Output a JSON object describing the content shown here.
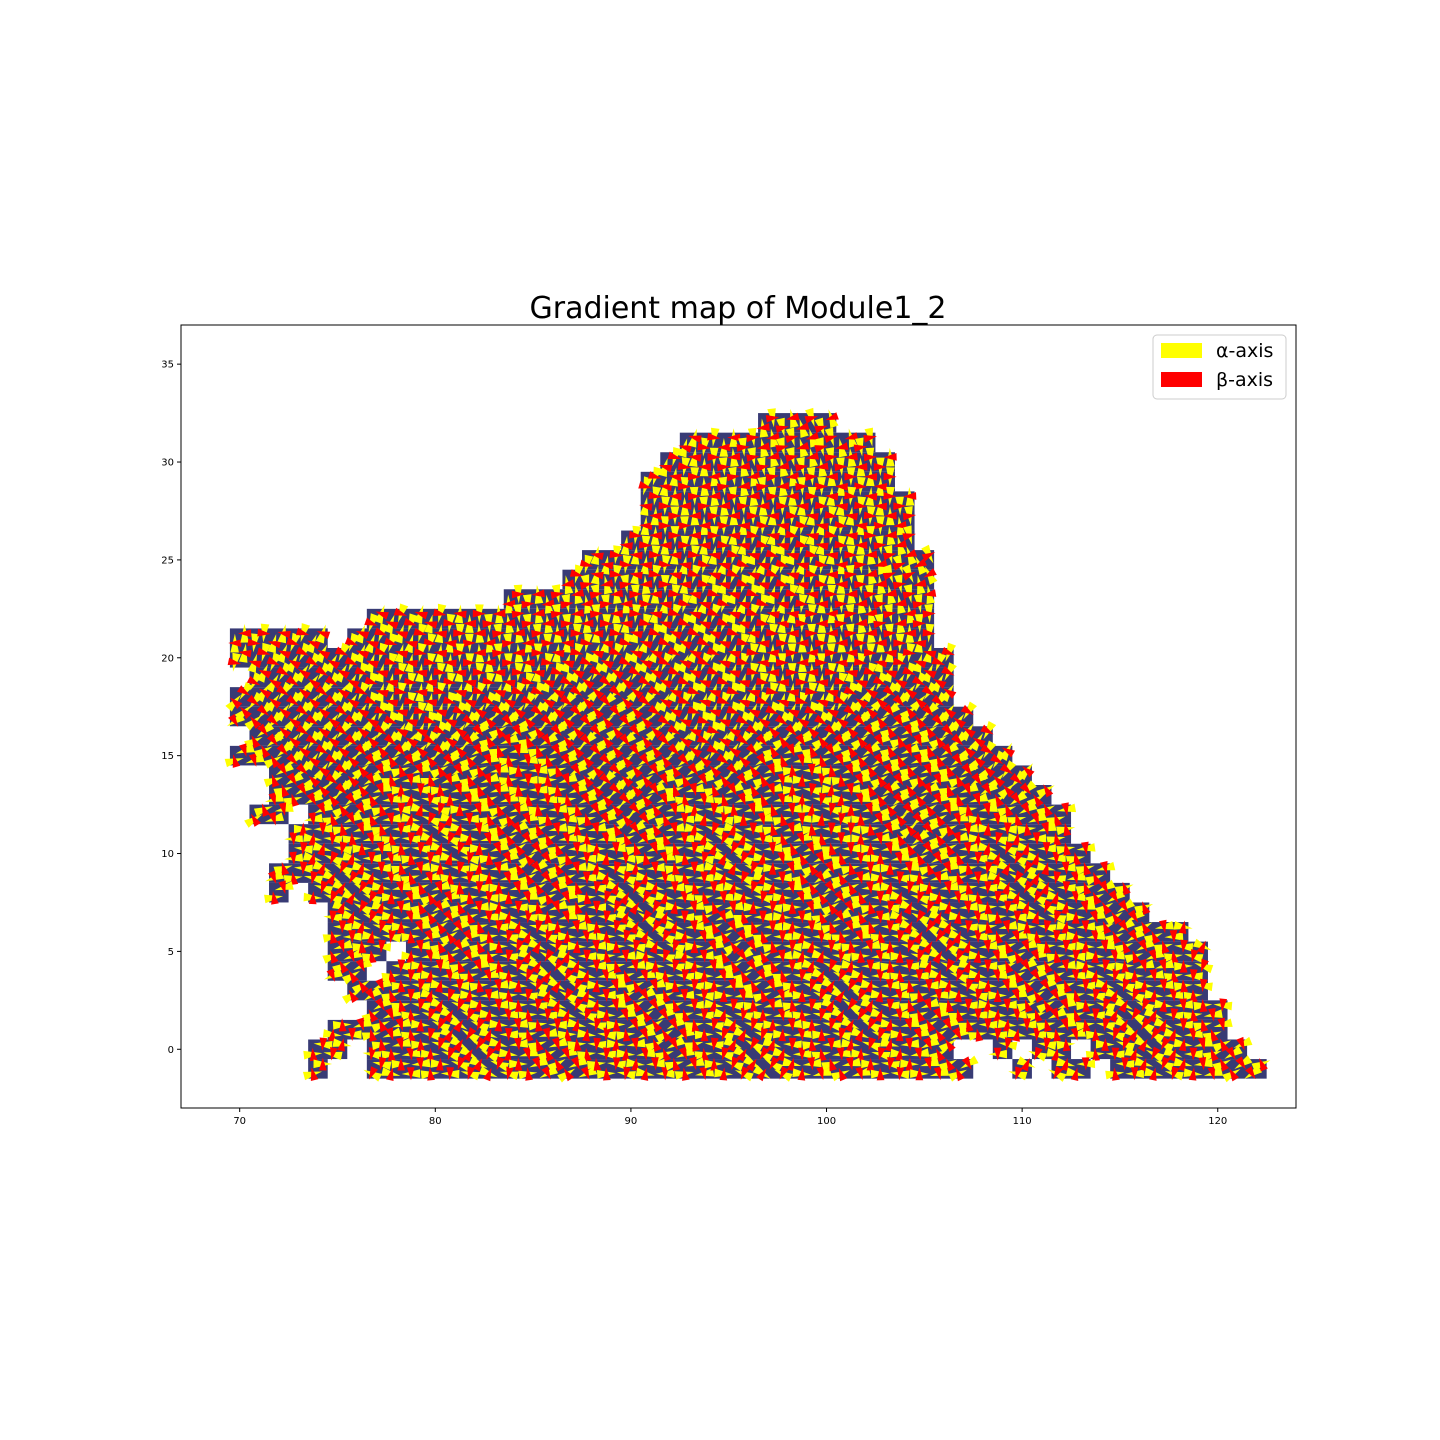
{
  "chart_data": {
    "type": "quiver",
    "title": "Gradient map of Module1_2",
    "xlabel": "",
    "ylabel": "",
    "xlim": [
      67,
      124
    ],
    "ylim": [
      -3,
      37
    ],
    "x_ticks": [
      70,
      80,
      90,
      100,
      110,
      120
    ],
    "y_ticks": [
      0,
      5,
      10,
      15,
      20,
      25,
      30,
      35
    ],
    "grid": false,
    "legend_position": "top-right",
    "cell_color": "#383b75",
    "series": [
      {
        "name": "α-axis",
        "color": "#ffff00"
      },
      {
        "name": "β-axis",
        "color": "#ff0000"
      }
    ],
    "region_rows": [
      {
        "y": 32,
        "x_ranges": [
          [
            97,
            100
          ]
        ]
      },
      {
        "y": 31,
        "x_ranges": [
          [
            93,
            102
          ]
        ]
      },
      {
        "y": 30,
        "x_ranges": [
          [
            92,
            103
          ]
        ]
      },
      {
        "y": 29,
        "x_ranges": [
          [
            91,
            103
          ]
        ]
      },
      {
        "y": 28,
        "x_ranges": [
          [
            91,
            104
          ]
        ]
      },
      {
        "y": 27,
        "x_ranges": [
          [
            91,
            104
          ]
        ]
      },
      {
        "y": 26,
        "x_ranges": [
          [
            90,
            104
          ]
        ]
      },
      {
        "y": 25,
        "x_ranges": [
          [
            88,
            105
          ]
        ]
      },
      {
        "y": 24,
        "x_ranges": [
          [
            87,
            105
          ]
        ]
      },
      {
        "y": 23,
        "x_ranges": [
          [
            84,
            105
          ]
        ]
      },
      {
        "y": 22,
        "x_ranges": [
          [
            77,
            105
          ]
        ]
      },
      {
        "y": 21,
        "x_ranges": [
          [
            70,
            74
          ],
          [
            76,
            105
          ]
        ]
      },
      {
        "y": 20,
        "x_ranges": [
          [
            70,
            106
          ]
        ]
      },
      {
        "y": 19,
        "x_ranges": [
          [
            71,
            106
          ]
        ]
      },
      {
        "y": 18,
        "x_ranges": [
          [
            70,
            106
          ]
        ]
      },
      {
        "y": 17,
        "x_ranges": [
          [
            70,
            107
          ]
        ]
      },
      {
        "y": 16,
        "x_ranges": [
          [
            71,
            108
          ]
        ]
      },
      {
        "y": 15,
        "x_ranges": [
          [
            70,
            109
          ]
        ]
      },
      {
        "y": 14,
        "x_ranges": [
          [
            72,
            110
          ]
        ]
      },
      {
        "y": 13,
        "x_ranges": [
          [
            72,
            111
          ]
        ]
      },
      {
        "y": 12,
        "x_ranges": [
          [
            71,
            72
          ],
          [
            74,
            112
          ]
        ]
      },
      {
        "y": 11,
        "x_ranges": [
          [
            73,
            112
          ]
        ]
      },
      {
        "y": 10,
        "x_ranges": [
          [
            73,
            113
          ]
        ]
      },
      {
        "y": 9,
        "x_ranges": [
          [
            72,
            114
          ]
        ]
      },
      {
        "y": 8,
        "x_ranges": [
          [
            72,
            72
          ],
          [
            74,
            115
          ]
        ]
      },
      {
        "y": 7,
        "x_ranges": [
          [
            75,
            116
          ]
        ]
      },
      {
        "y": 6,
        "x_ranges": [
          [
            75,
            118
          ]
        ]
      },
      {
        "y": 5,
        "x_ranges": [
          [
            75,
            77
          ],
          [
            79,
            119
          ]
        ]
      },
      {
        "y": 4,
        "x_ranges": [
          [
            75,
            76
          ],
          [
            78,
            119
          ]
        ]
      },
      {
        "y": 3,
        "x_ranges": [
          [
            76,
            119
          ]
        ]
      },
      {
        "y": 2,
        "x_ranges": [
          [
            77,
            120
          ]
        ]
      },
      {
        "y": 1,
        "x_ranges": [
          [
            75,
            120
          ]
        ]
      },
      {
        "y": 0,
        "x_ranges": [
          [
            74,
            75
          ],
          [
            77,
            106
          ],
          [
            109,
            109
          ],
          [
            111,
            112
          ],
          [
            114,
            121
          ]
        ]
      },
      {
        "y": -1,
        "x_ranges": [
          [
            74,
            74
          ],
          [
            77,
            107
          ],
          [
            110,
            110
          ],
          [
            112,
            113
          ],
          [
            115,
            122
          ]
        ]
      }
    ]
  }
}
